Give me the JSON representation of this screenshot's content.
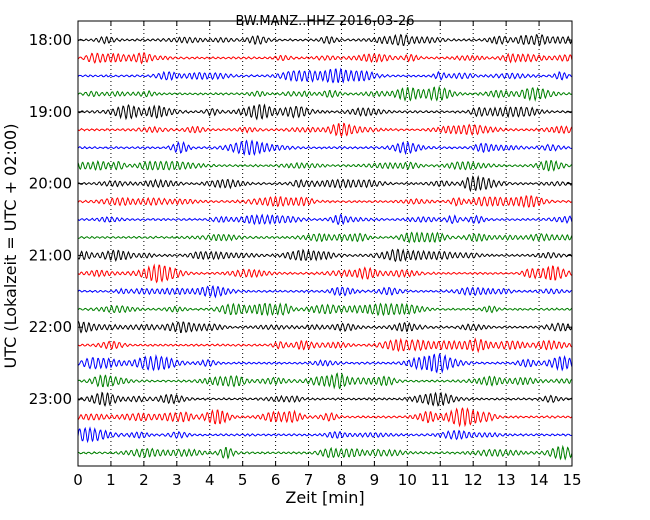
{
  "chart_data": {
    "type": "line",
    "title": "BW.MANZ..HHZ 2016-03-26",
    "xlabel": "Zeit  [min]",
    "ylabel": "UTC (Lokalzeit = UTC + 02:00)",
    "xlim": [
      0,
      15
    ],
    "x_ticks": [
      "0",
      "1",
      "2",
      "3",
      "4",
      "5",
      "6",
      "7",
      "8",
      "9",
      "10",
      "11",
      "12",
      "13",
      "14",
      "15"
    ],
    "y_tick_labels": [
      "18:00",
      "19:00",
      "20:00",
      "21:00",
      "22:00",
      "23:00"
    ],
    "grid": "vertical dotted at each minute",
    "trace_interval_minutes": 15,
    "trace_colors": [
      "#000000",
      "#ff0000",
      "#0000ff",
      "#008000"
    ],
    "traces": [
      {
        "start": "18:00",
        "color": "#000000"
      },
      {
        "start": "18:15",
        "color": "#ff0000"
      },
      {
        "start": "18:30",
        "color": "#0000ff"
      },
      {
        "start": "18:45",
        "color": "#008000"
      },
      {
        "start": "19:00",
        "color": "#000000"
      },
      {
        "start": "19:15",
        "color": "#ff0000"
      },
      {
        "start": "19:30",
        "color": "#0000ff"
      },
      {
        "start": "19:45",
        "color": "#008000"
      },
      {
        "start": "20:00",
        "color": "#000000"
      },
      {
        "start": "20:15",
        "color": "#ff0000"
      },
      {
        "start": "20:30",
        "color": "#0000ff"
      },
      {
        "start": "20:45",
        "color": "#008000"
      },
      {
        "start": "21:00",
        "color": "#000000"
      },
      {
        "start": "21:15",
        "color": "#ff0000"
      },
      {
        "start": "21:30",
        "color": "#0000ff"
      },
      {
        "start": "21:45",
        "color": "#008000"
      },
      {
        "start": "22:00",
        "color": "#000000"
      },
      {
        "start": "22:15",
        "color": "#ff0000"
      },
      {
        "start": "22:30",
        "color": "#0000ff"
      },
      {
        "start": "22:45",
        "color": "#008000"
      },
      {
        "start": "23:00",
        "color": "#000000"
      },
      {
        "start": "23:15",
        "color": "#ff0000"
      },
      {
        "start": "23:30",
        "color": "#0000ff"
      },
      {
        "start": "23:45",
        "color": "#008000"
      }
    ]
  }
}
